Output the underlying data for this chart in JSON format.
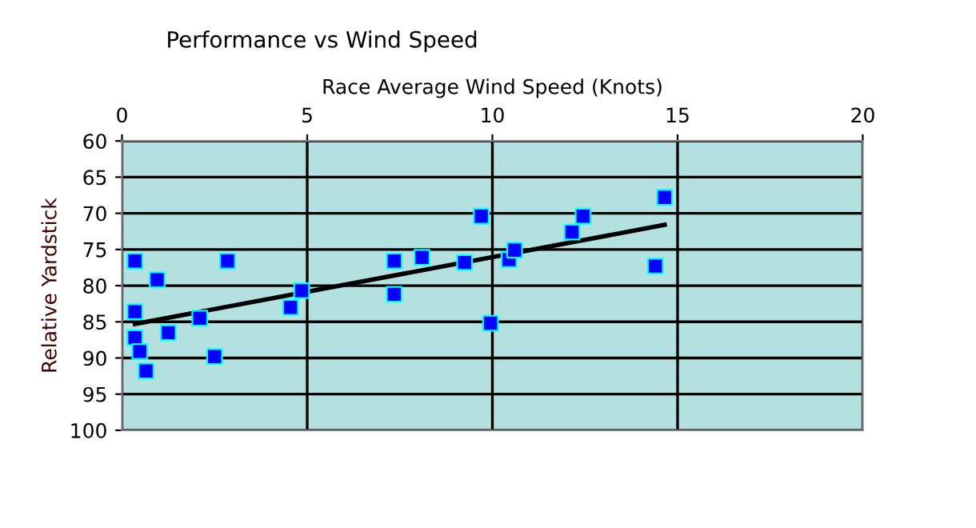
{
  "chart_data": {
    "type": "scatter",
    "title": "Performance vs Wind Speed",
    "xlabel": "Race Average Wind Speed (Knots)",
    "ylabel": "Relative Yardstick",
    "xlim": [
      0,
      20
    ],
    "xticks": [
      0,
      5,
      10,
      15,
      20
    ],
    "ylim": [
      100,
      60
    ],
    "yticks": [
      60,
      65,
      70,
      75,
      80,
      85,
      90,
      95,
      100
    ],
    "grid": true,
    "series": [
      {
        "marker": "square",
        "color": "#0000ff",
        "x": [
          0.35,
          0.35,
          0.35,
          0.48,
          0.65,
          0.95,
          1.25,
          2.1,
          2.5,
          2.85,
          4.55,
          4.85,
          7.35,
          7.35,
          8.1,
          9.25,
          9.7,
          9.95,
          10.45,
          10.6,
          12.15,
          12.45,
          14.4,
          14.65
        ],
        "values": [
          76.6,
          83.6,
          87.2,
          89.1,
          91.8,
          79.2,
          86.5,
          84.5,
          89.8,
          76.6,
          83.0,
          80.7,
          76.6,
          81.2,
          76.1,
          76.8,
          70.4,
          85.2,
          76.4,
          75.1,
          72.6,
          70.4,
          77.3,
          67.8
        ]
      },
      {
        "type": "line",
        "color": "#000000",
        "x": [
          0.35,
          14.65
        ],
        "values": [
          85.3,
          71.6
        ]
      }
    ]
  }
}
